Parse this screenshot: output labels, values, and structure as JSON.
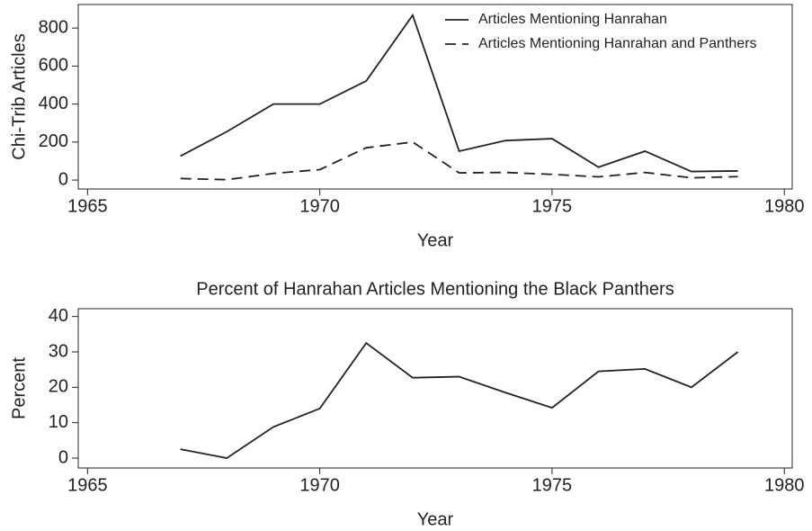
{
  "chart_data": [
    {
      "type": "line",
      "ylabel": "Chi-Trib Articles",
      "xlabel": "Year",
      "x": [
        1967,
        1968,
        1969,
        1970,
        1971,
        1972,
        1973,
        1974,
        1975,
        1976,
        1977,
        1978,
        1979
      ],
      "series": [
        {
          "name": "Articles Mentioning Hanrahan",
          "color": "#222222",
          "dash": false,
          "values": [
            126,
            255,
            400,
            400,
            522,
            868,
            152,
            208,
            218,
            68,
            152,
            45,
            48
          ]
        },
        {
          "name": "Articles Mentioning Hanrahan and Panthers",
          "color": "#222222",
          "dash": true,
          "values": [
            8,
            2,
            35,
            55,
            170,
            200,
            38,
            40,
            30,
            17,
            40,
            12,
            18
          ]
        }
      ],
      "xlim": [
        1964.8,
        1980.17
      ],
      "xticks": [
        1965,
        1970,
        1975,
        1980
      ],
      "ylim": [
        -47,
        924
      ],
      "yticks": [
        0,
        200,
        400,
        600,
        800
      ],
      "legend": "upper right"
    },
    {
      "type": "line",
      "title": "Percent of Hanrahan Articles Mentioning the Black Panthers",
      "ylabel": "Percent",
      "xlabel": "Year",
      "x": [
        1967,
        1968,
        1969,
        1970,
        1971,
        1972,
        1973,
        1974,
        1975,
        1976,
        1977,
        1978,
        1979
      ],
      "series": [
        {
          "color": "#222222",
          "dash": false,
          "values": [
            2.5,
            0,
            8.8,
            14,
            32.5,
            22.7,
            23,
            18.5,
            14.2,
            24.5,
            25.2,
            20,
            30
          ]
        }
      ],
      "xlim": [
        1964.8,
        1980.17
      ],
      "xticks": [
        1965,
        1970,
        1975,
        1980
      ],
      "ylim": [
        -2.8,
        42.2
      ],
      "yticks": [
        0,
        10,
        20,
        30,
        40
      ]
    }
  ]
}
